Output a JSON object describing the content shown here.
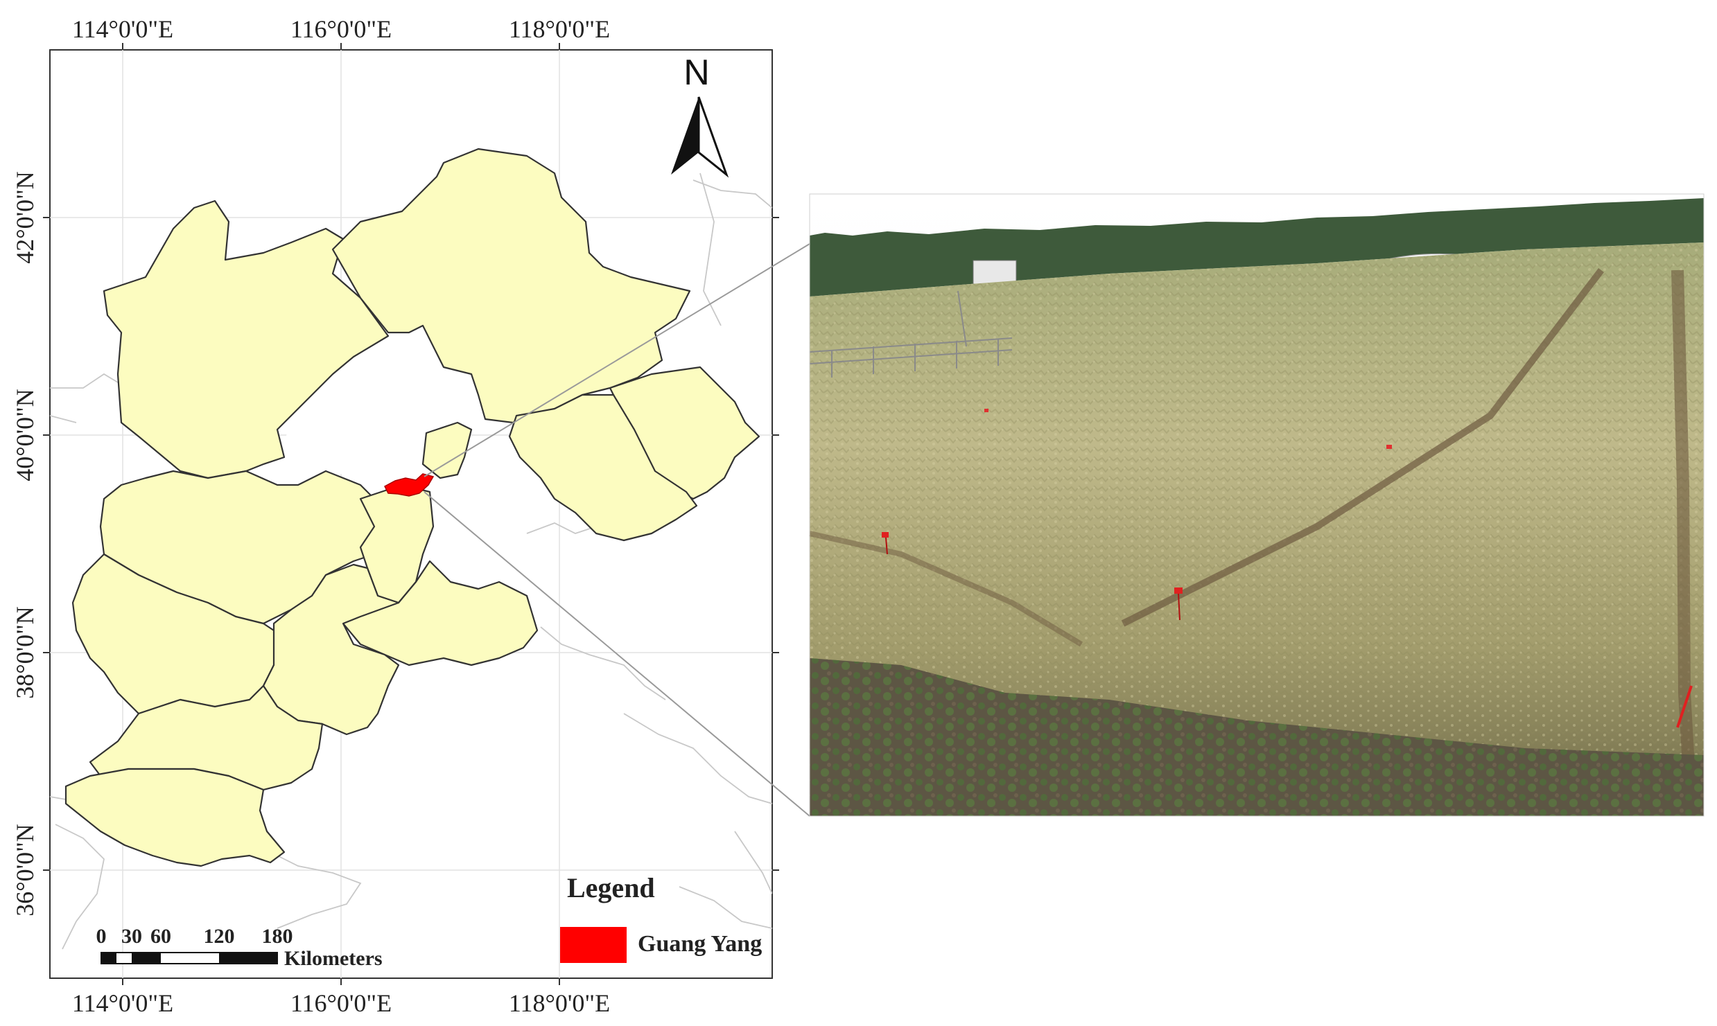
{
  "map": {
    "top_ticks": [
      "114°0'0\"E",
      "116°0'0\"E",
      "118°0'0\"E"
    ],
    "bottom_ticks": [
      "114°0'0\"E",
      "116°0'0\"E",
      "118°0'0\"E"
    ],
    "left_ticks": [
      "42°0'0\"N",
      "40°0'0\"N",
      "38°0'0\"N",
      "36°0'0\"N"
    ],
    "north_label": "N",
    "legend": {
      "title": "Legend",
      "item_label": "Guang Yang",
      "item_color": "#ff0000"
    },
    "scale_bar": {
      "ticks": [
        "0",
        "30",
        "60",
        "120",
        "180"
      ],
      "unit": "Kilometers"
    },
    "colors": {
      "province_fill": "#fcfcc0",
      "study_site": "#ff0000"
    }
  },
  "photo": {
    "icon": "wheat-field-photo"
  }
}
